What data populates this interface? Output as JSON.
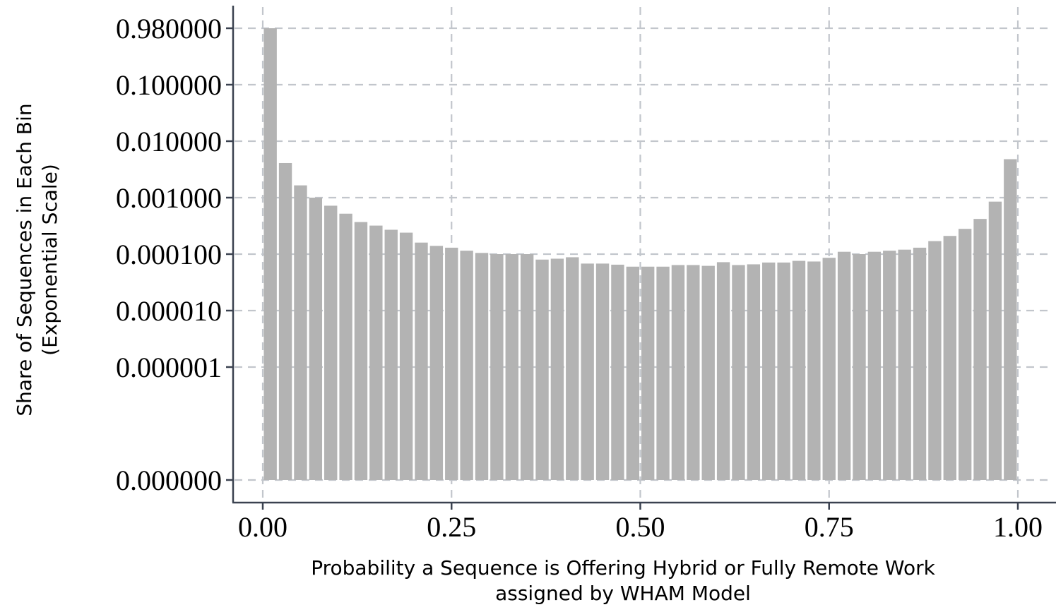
{
  "chart_data": {
    "type": "bar",
    "title": "",
    "xlabel": [
      "Probability a Sequence is Offering Hybrid or Fully Remote Work",
      "assigned by WHAM Model"
    ],
    "ylabel": [
      "Share of Sequences in Each Bin",
      "(Exponential Scale)"
    ],
    "xlim": [
      0,
      1
    ],
    "x_ticks": [
      {
        "value": 0.0,
        "label": "0.00"
      },
      {
        "value": 0.25,
        "label": "0.25"
      },
      {
        "value": 0.5,
        "label": "0.50"
      },
      {
        "value": 0.75,
        "label": "0.75"
      },
      {
        "value": 1.0,
        "label": "1.00"
      }
    ],
    "y_scale": "log",
    "y_ticks": [
      {
        "value": 0.98,
        "label": "0.980000"
      },
      {
        "value": 0.1,
        "label": "0.100000"
      },
      {
        "value": 0.01,
        "label": "0.010000"
      },
      {
        "value": 0.001,
        "label": "0.001000"
      },
      {
        "value": 0.0001,
        "label": "0.000100"
      },
      {
        "value": 1e-05,
        "label": "0.000010"
      },
      {
        "value": 1e-06,
        "label": "0.000001"
      },
      {
        "value": 0,
        "label": "0.000000"
      }
    ],
    "grid": true,
    "bar_color": "#b3b3b3",
    "bin_width": 0.02,
    "x": [
      0.01,
      0.03,
      0.05,
      0.07,
      0.09,
      0.11,
      0.13,
      0.15,
      0.17,
      0.19,
      0.21,
      0.23,
      0.25,
      0.27,
      0.29,
      0.31,
      0.33,
      0.35,
      0.37,
      0.39,
      0.41,
      0.43,
      0.45,
      0.47,
      0.49,
      0.51,
      0.53,
      0.55,
      0.57,
      0.59,
      0.61,
      0.63,
      0.65,
      0.67,
      0.69,
      0.71,
      0.73,
      0.75,
      0.77,
      0.79,
      0.81,
      0.83,
      0.85,
      0.87,
      0.89,
      0.91,
      0.93,
      0.95,
      0.97,
      0.99
    ],
    "values": [
      0.98,
      0.0041,
      0.00165,
      0.001,
      0.00072,
      0.00052,
      0.00037,
      0.00032,
      0.00027,
      0.00024,
      0.00016,
      0.00014,
      0.00013,
      0.000115,
      0.000105,
      0.0001,
      0.0001,
      0.0001,
      8e-05,
      8.3e-05,
      8.8e-05,
      6.8e-05,
      6.8e-05,
      6.5e-05,
      6e-05,
      6e-05,
      6e-05,
      6.4e-05,
      6.4e-05,
      6.2e-05,
      7.2e-05,
      6.4e-05,
      6.6e-05,
      7.1e-05,
      7.1e-05,
      7.6e-05,
      7.4e-05,
      8.6e-05,
      0.00011,
      0.0001,
      0.00011,
      0.000115,
      0.00012,
      0.00013,
      0.00017,
      0.00021,
      0.00028,
      0.00042,
      0.00085,
      0.0048
    ]
  }
}
